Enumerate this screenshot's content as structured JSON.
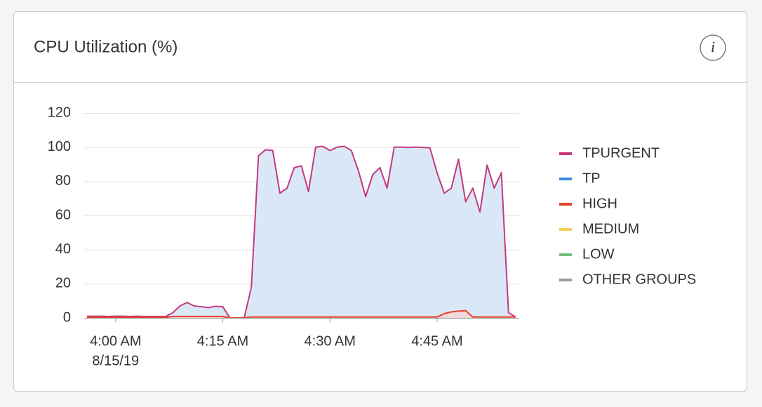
{
  "chart_data": {
    "type": "area",
    "title": "CPU Utilization (%)",
    "x": [
      -4,
      -3,
      -2,
      -1,
      0,
      1,
      2,
      3,
      4,
      5,
      6,
      7,
      8,
      9,
      10,
      11,
      12,
      13,
      14,
      15,
      16,
      17,
      18,
      19,
      20,
      21,
      22,
      23,
      24,
      25,
      26,
      27,
      28,
      29,
      30,
      31,
      32,
      33,
      34,
      35,
      36,
      37,
      38,
      39,
      40,
      41,
      42,
      43,
      44,
      45,
      46,
      47,
      48,
      49,
      50,
      51,
      52,
      53,
      54,
      55,
      56
    ],
    "xlim": [
      -4.4,
      56.5
    ],
    "xticks": [
      {
        "value": 0,
        "label": "4:00 AM"
      },
      {
        "value": 15,
        "label": "4:15 AM"
      },
      {
        "value": 30,
        "label": "4:30 AM"
      },
      {
        "value": 45,
        "label": "4:45 AM"
      }
    ],
    "date_label": "8/15/19",
    "ylim": [
      0,
      120
    ],
    "yticks": [
      0,
      20,
      40,
      60,
      80,
      100,
      120
    ],
    "grid": true,
    "series": [
      {
        "name": "TPURGENT",
        "color": "#c43a7d",
        "area_color": "#d6e4f6",
        "values": [
          1,
          1,
          1,
          0.8,
          1,
          1,
          0.8,
          1,
          0.8,
          0.8,
          0.8,
          0.8,
          3,
          7,
          9,
          7,
          6.5,
          6,
          6.8,
          6.5,
          0,
          0,
          0,
          18,
          95,
          98.5,
          98,
          73,
          76,
          88,
          89,
          74,
          100,
          100.5,
          98,
          100,
          100.5,
          98,
          86,
          71,
          84,
          88,
          76,
          100,
          100,
          99.8,
          100,
          99.8,
          99.6,
          85,
          73,
          76,
          93,
          68,
          76,
          62,
          89.5,
          76,
          85,
          3,
          0.5
        ]
      },
      {
        "name": "TP",
        "color": "#3b8be0",
        "values": [
          0,
          0,
          0,
          0,
          0,
          0,
          0,
          0,
          0,
          0,
          0,
          0,
          0,
          0,
          0,
          0,
          0,
          0,
          0,
          0,
          0,
          0,
          0,
          0,
          0,
          0,
          0,
          0,
          0,
          0,
          0,
          0,
          0,
          0,
          0,
          0,
          0,
          0,
          0,
          0,
          0,
          0,
          0,
          0,
          0,
          0,
          0,
          0,
          0,
          0,
          0,
          0,
          0,
          0,
          0,
          0,
          0,
          0,
          0,
          0,
          0
        ]
      },
      {
        "name": "HIGH",
        "color": "#e4412a",
        "area_color": "#f3d6d6",
        "values": [
          0.3,
          0.3,
          0.3,
          0.3,
          0.3,
          0.3,
          0.3,
          0.3,
          0.3,
          0.3,
          0.3,
          0.3,
          0.8,
          0.8,
          0.8,
          0.8,
          0.8,
          0.8,
          0.8,
          0.8,
          0,
          0,
          0,
          0.5,
          0.5,
          0.5,
          0.5,
          0.5,
          0.5,
          0.5,
          0.5,
          0.5,
          0.5,
          0.5,
          0.5,
          0.5,
          0.5,
          0.5,
          0.5,
          0.5,
          0.5,
          0.5,
          0.5,
          0.5,
          0.5,
          0.5,
          0.5,
          0.5,
          0.5,
          0.5,
          2.5,
          3.5,
          4,
          4.2,
          0.5,
          0.5,
          0.5,
          0.5,
          0.5,
          0.5,
          0.5
        ]
      },
      {
        "name": "MEDIUM",
        "color": "#f3d15e",
        "values": [
          0,
          0,
          0,
          0,
          0,
          0,
          0,
          0,
          0,
          0,
          0,
          0,
          0,
          0,
          0,
          0,
          0,
          0,
          0,
          0,
          0,
          0,
          0,
          0,
          0,
          0,
          0,
          0,
          0,
          0,
          0,
          0,
          0,
          0,
          0,
          0,
          0,
          0,
          0,
          0,
          0,
          0,
          0,
          0,
          0,
          0,
          0,
          0,
          0,
          0,
          0,
          0,
          0,
          0,
          0,
          0,
          0,
          0,
          0,
          0,
          0
        ]
      },
      {
        "name": "LOW",
        "color": "#72c17a",
        "values": [
          0,
          0,
          0,
          0,
          0,
          0,
          0,
          0,
          0,
          0,
          0,
          0,
          0,
          0,
          0,
          0,
          0,
          0,
          0,
          0,
          0,
          0,
          0,
          0,
          0,
          0,
          0,
          0,
          0,
          0,
          0,
          0,
          0,
          0,
          0,
          0,
          0,
          0,
          0,
          0,
          0,
          0,
          0,
          0,
          0,
          0,
          0,
          0,
          0,
          0,
          0,
          0,
          0,
          0,
          0,
          0,
          0,
          0,
          0,
          0,
          0
        ]
      },
      {
        "name": "OTHER GROUPS",
        "color": "#9a9a9a",
        "values": [
          0,
          0,
          0,
          0,
          0,
          0,
          0,
          0,
          0,
          0,
          0,
          0,
          0,
          0,
          0,
          0,
          0,
          0,
          0,
          0,
          0,
          0,
          0,
          0,
          0,
          0,
          0,
          0,
          0,
          0,
          0,
          0,
          0,
          0,
          0,
          0,
          0,
          0,
          0,
          0,
          0,
          0,
          0,
          0,
          0,
          0,
          0,
          0,
          0,
          0,
          0,
          0,
          0,
          0,
          0,
          0,
          0,
          0,
          0,
          0,
          0
        ]
      }
    ]
  }
}
